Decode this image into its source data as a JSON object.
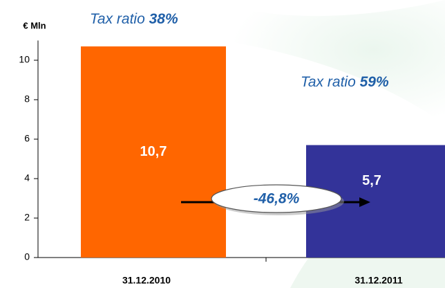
{
  "chart_data": {
    "type": "bar",
    "y_axis_label": "€ Mln",
    "categories": [
      "31.12.2010",
      "31.12.2011"
    ],
    "values": [
      10.7,
      5.7
    ],
    "value_labels": [
      "10,7",
      "5,7"
    ],
    "colors": [
      "#ff6600",
      "#333399"
    ],
    "ylim": [
      0,
      11
    ],
    "yticks": [
      0,
      2,
      4,
      6,
      8,
      10
    ],
    "annotations": [
      {
        "text": "Tax ratio",
        "emphasis": "38%"
      },
      {
        "text": "Tax ratio",
        "emphasis": "59%"
      }
    ],
    "change_label": "-46,8%"
  }
}
